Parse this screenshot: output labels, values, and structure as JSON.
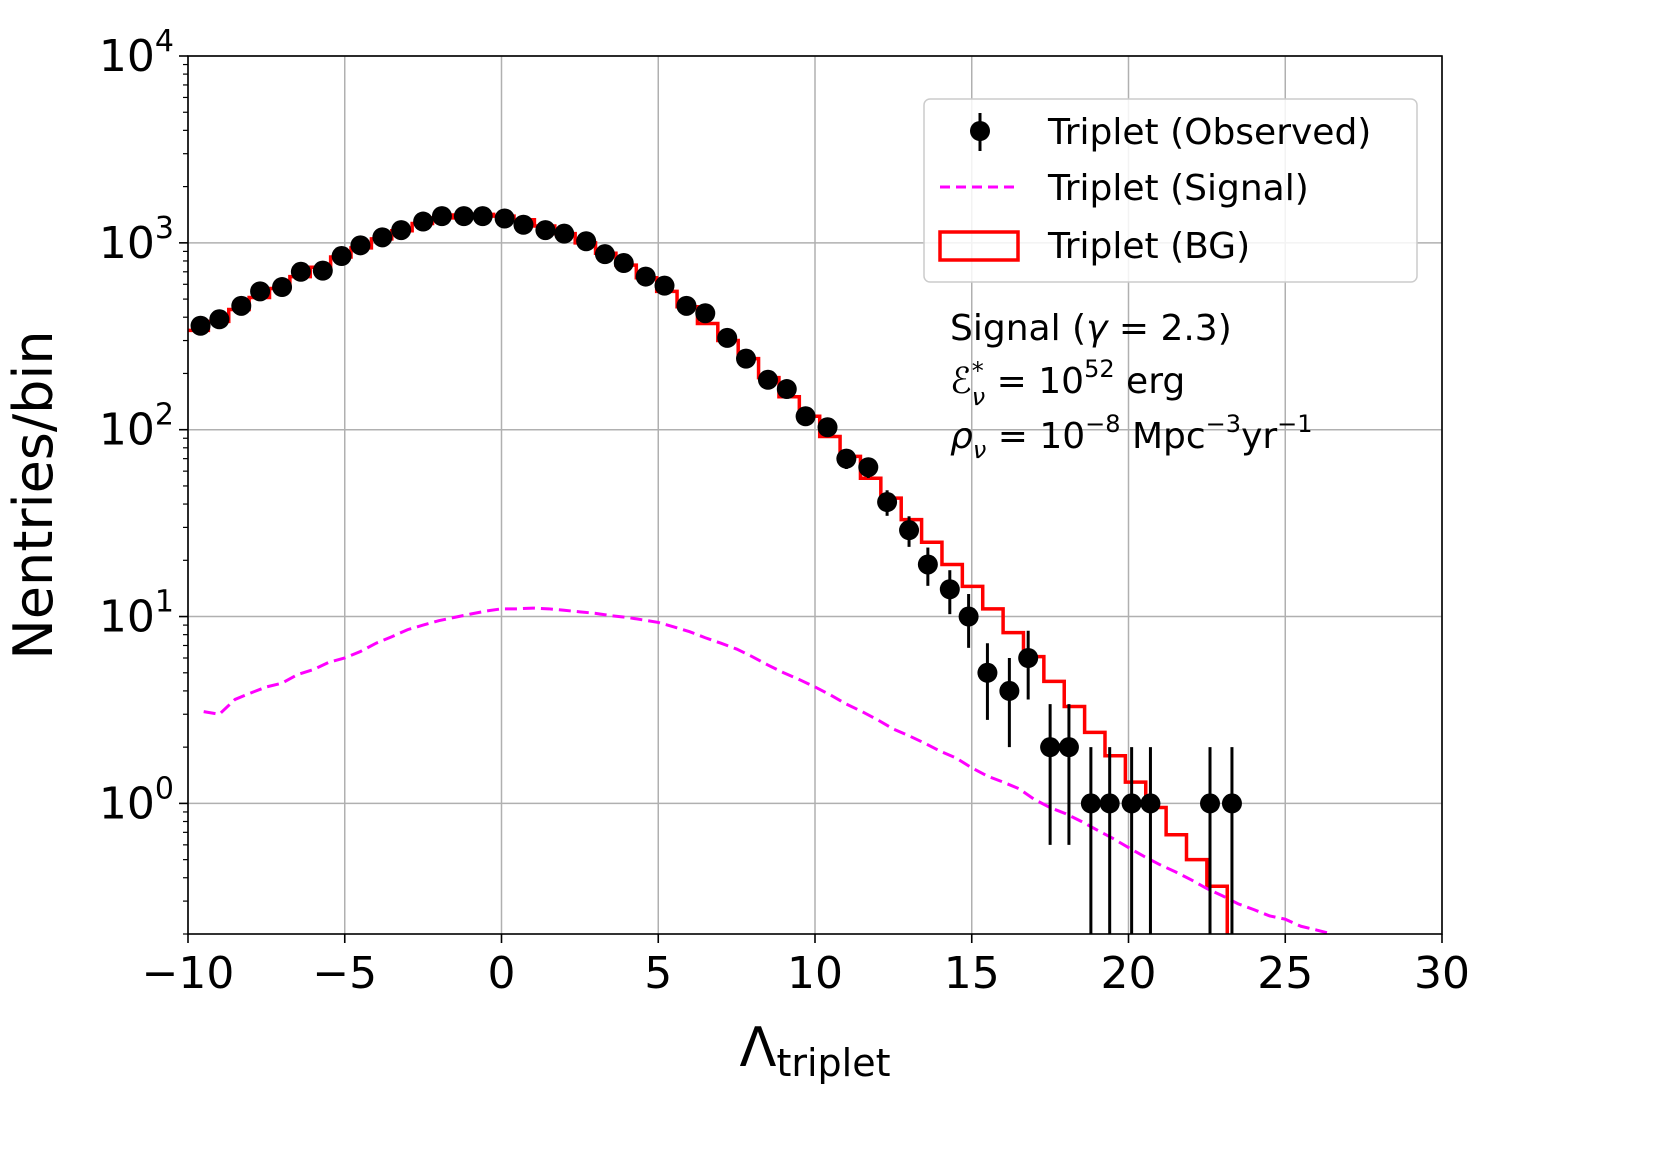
{
  "chart_data": {
    "type": "histogram",
    "title": "",
    "xlabel": "Λ",
    "xlabel_sub": "triplet",
    "ylabel": "Nentries/bin",
    "xlim": [
      -10,
      30
    ],
    "ylim": [
      0.2,
      10000
    ],
    "yscale": "log",
    "grid": true,
    "x_ticks": [
      {
        "value": -10,
        "label": "−10"
      },
      {
        "value": -5,
        "label": "−5"
      },
      {
        "value": 0,
        "label": "0"
      },
      {
        "value": 5,
        "label": "5"
      },
      {
        "value": 10,
        "label": "10"
      },
      {
        "value": 15,
        "label": "15"
      },
      {
        "value": 20,
        "label": "20"
      },
      {
        "value": 25,
        "label": "25"
      },
      {
        "value": 30,
        "label": "30"
      }
    ],
    "y_ticks": [
      {
        "value": 1,
        "base": "10",
        "exp": "0"
      },
      {
        "value": 10,
        "base": "10",
        "exp": "1"
      },
      {
        "value": 100,
        "base": "10",
        "exp": "2"
      },
      {
        "value": 1000,
        "base": "10",
        "exp": "3"
      },
      {
        "value": 10000,
        "base": "10",
        "exp": "4"
      }
    ],
    "legend": {
      "position": "top-right",
      "entries": [
        {
          "label": "Triplet (Observed)",
          "style": "black-points-errorbars"
        },
        {
          "label": "Triplet (Signal)",
          "style": "magenta-dashed-line"
        },
        {
          "label": "Triplet (BG)",
          "style": "red-step-histogram"
        }
      ]
    },
    "annotations": [
      "Signal (γ = 2.3)",
      "ℰ*ν = 10^52 erg",
      "ρν = 10^−8 Mpc^−3 yr^−1"
    ],
    "series": [
      {
        "name": "Triplet (Observed)",
        "color": "#000000",
        "x": [
          -9.6,
          -9.0,
          -8.3,
          -7.7,
          -7.0,
          -6.4,
          -5.7,
          -5.1,
          -4.5,
          -3.8,
          -3.2,
          -2.5,
          -1.9,
          -1.2,
          -0.6,
          0.1,
          0.7,
          1.4,
          2.0,
          2.7,
          3.3,
          3.9,
          4.6,
          5.2,
          5.9,
          6.5,
          7.2,
          7.8,
          8.5,
          9.1,
          9.7,
          10.4,
          11.0,
          11.7,
          12.3,
          13.0,
          13.6,
          14.3,
          14.9,
          15.5,
          16.2,
          16.8,
          17.5,
          18.1,
          18.8,
          19.4,
          20.1,
          20.7,
          22.6,
          23.3
        ],
        "y": [
          360,
          390,
          460,
          550,
          580,
          700,
          710,
          850,
          970,
          1070,
          1170,
          1300,
          1390,
          1390,
          1390,
          1350,
          1250,
          1170,
          1120,
          1020,
          870,
          780,
          660,
          590,
          460,
          420,
          310,
          240,
          185,
          165,
          118,
          103,
          70,
          63,
          41,
          29,
          19,
          14,
          10,
          5,
          4,
          6,
          2,
          2,
          1,
          1,
          1,
          1,
          1,
          1
        ],
        "err": [
          19,
          20,
          21,
          23,
          24,
          26,
          27,
          29,
          31,
          33,
          34,
          36,
          37,
          37,
          37,
          37,
          35,
          34,
          33,
          32,
          29,
          28,
          26,
          24,
          21,
          20,
          18,
          15,
          14,
          13,
          11,
          10,
          8.4,
          7.9,
          6.4,
          5.4,
          4.4,
          3.7,
          3.2,
          2.2,
          2.0,
          2.4,
          1.4,
          1.4,
          1.0,
          1.0,
          1.0,
          1.0,
          1.0,
          1.0
        ]
      },
      {
        "name": "Triplet (Signal)",
        "color": "#ff00ff",
        "x": [
          -9.5,
          -9.0,
          -8.5,
          -8.0,
          -7.5,
          -7.0,
          -6.5,
          -6.0,
          -5.5,
          -5.0,
          -4.5,
          -4.0,
          -3.5,
          -3.0,
          -2.5,
          -2.0,
          -1.5,
          -1.0,
          -0.5,
          0.0,
          0.5,
          1.0,
          1.5,
          2.0,
          2.5,
          3.0,
          3.5,
          4.0,
          4.5,
          5.0,
          5.5,
          6.0,
          6.5,
          7.0,
          7.5,
          8.0,
          8.5,
          9.0,
          9.5,
          10.0,
          10.5,
          11.0,
          11.5,
          12.0,
          12.5,
          13.0,
          13.5,
          14.0,
          14.5,
          15.0,
          15.5,
          16.0,
          16.5,
          17.0,
          17.5,
          18.0,
          18.5,
          19.0,
          19.5,
          20.0,
          20.5,
          21.0,
          21.5,
          22.0,
          22.5,
          23.0,
          23.5,
          24.0,
          24.5,
          25.0,
          25.5,
          26.0,
          26.5
        ],
        "y": [
          3.1,
          3.0,
          3.6,
          3.9,
          4.2,
          4.4,
          4.9,
          5.2,
          5.7,
          6.0,
          6.5,
          7.2,
          7.8,
          8.5,
          9.0,
          9.5,
          9.9,
          10.3,
          10.7,
          11.0,
          11.0,
          11.1,
          11.0,
          10.8,
          10.6,
          10.4,
          10.1,
          9.9,
          9.6,
          9.3,
          8.8,
          8.3,
          7.7,
          7.2,
          6.7,
          6.1,
          5.5,
          5.0,
          4.6,
          4.2,
          3.8,
          3.4,
          3.1,
          2.8,
          2.5,
          2.3,
          2.1,
          1.9,
          1.75,
          1.55,
          1.4,
          1.3,
          1.2,
          1.05,
          0.95,
          0.88,
          0.8,
          0.72,
          0.65,
          0.58,
          0.52,
          0.47,
          0.43,
          0.39,
          0.35,
          0.32,
          0.29,
          0.27,
          0.25,
          0.24,
          0.22,
          0.21,
          0.2
        ]
      },
      {
        "name": "Triplet (BG)",
        "color": "#ff0000",
        "bin_edges": [
          -10.0,
          -9.35,
          -8.7,
          -8.05,
          -7.4,
          -6.75,
          -6.1,
          -5.45,
          -4.8,
          -4.15,
          -3.5,
          -2.85,
          -2.2,
          -1.55,
          -0.9,
          -0.25,
          0.4,
          1.05,
          1.7,
          2.35,
          3.0,
          3.65,
          4.3,
          4.95,
          5.6,
          6.25,
          6.9,
          7.55,
          8.2,
          8.85,
          9.5,
          10.15,
          10.8,
          11.45,
          12.1,
          12.75,
          13.4,
          14.05,
          14.7,
          15.35,
          16.0,
          16.65,
          17.3,
          17.95,
          18.6,
          19.25,
          19.9,
          20.55,
          21.2,
          21.85,
          22.5,
          23.15
        ],
        "values": [
          340,
          380,
          440,
          510,
          570,
          660,
          740,
          840,
          940,
          1050,
          1160,
          1270,
          1360,
          1410,
          1420,
          1390,
          1330,
          1230,
          1120,
          1000,
          880,
          760,
          650,
          550,
          455,
          370,
          300,
          240,
          190,
          150,
          118,
          92,
          72,
          55,
          43,
          33,
          25,
          19,
          14.5,
          11,
          8.2,
          6.1,
          4.5,
          3.3,
          2.4,
          1.8,
          1.3,
          0.95,
          0.68,
          0.5,
          0.36
        ]
      }
    ]
  }
}
